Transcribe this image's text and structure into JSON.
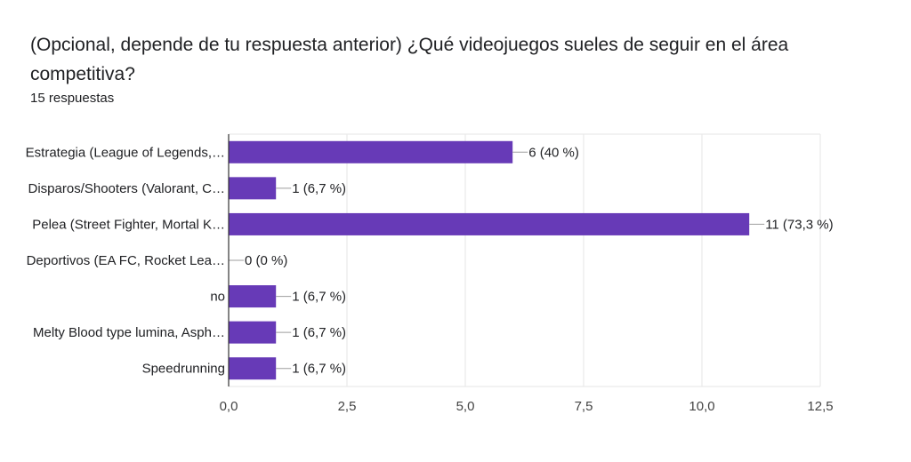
{
  "header": {
    "title": "(Opcional, depende de tu respuesta anterior) ¿Qué videojuegos sueles de seguir en el área competitiva?",
    "subtitle": "15 respuestas"
  },
  "chart_data": {
    "type": "bar",
    "orientation": "horizontal",
    "categories": [
      "Estrategia (League of Legends,…",
      "Disparos/Shooters (Valorant, C…",
      "Pelea (Street Fighter, Mortal K…",
      "Deportivos (EA FC, Rocket Lea…",
      "no",
      "Melty Blood type lumina, Asph…",
      "Speedrunning"
    ],
    "values": [
      6,
      1,
      11,
      0,
      1,
      1,
      1
    ],
    "data_labels": [
      "6 (40 %)",
      "1 (6,7 %)",
      "11 (73,3 %)",
      "0 (0 %)",
      "1 (6,7 %)",
      "1 (6,7 %)",
      "1 (6,7 %)"
    ],
    "xlim": [
      0,
      12.5
    ],
    "xticks": [
      0,
      2.5,
      5,
      7.5,
      10,
      12.5
    ],
    "xtick_labels": [
      "0,0",
      "2,5",
      "5,0",
      "7,5",
      "10,0",
      "12,5"
    ],
    "grid": true,
    "bar_color": "#673ab7"
  }
}
